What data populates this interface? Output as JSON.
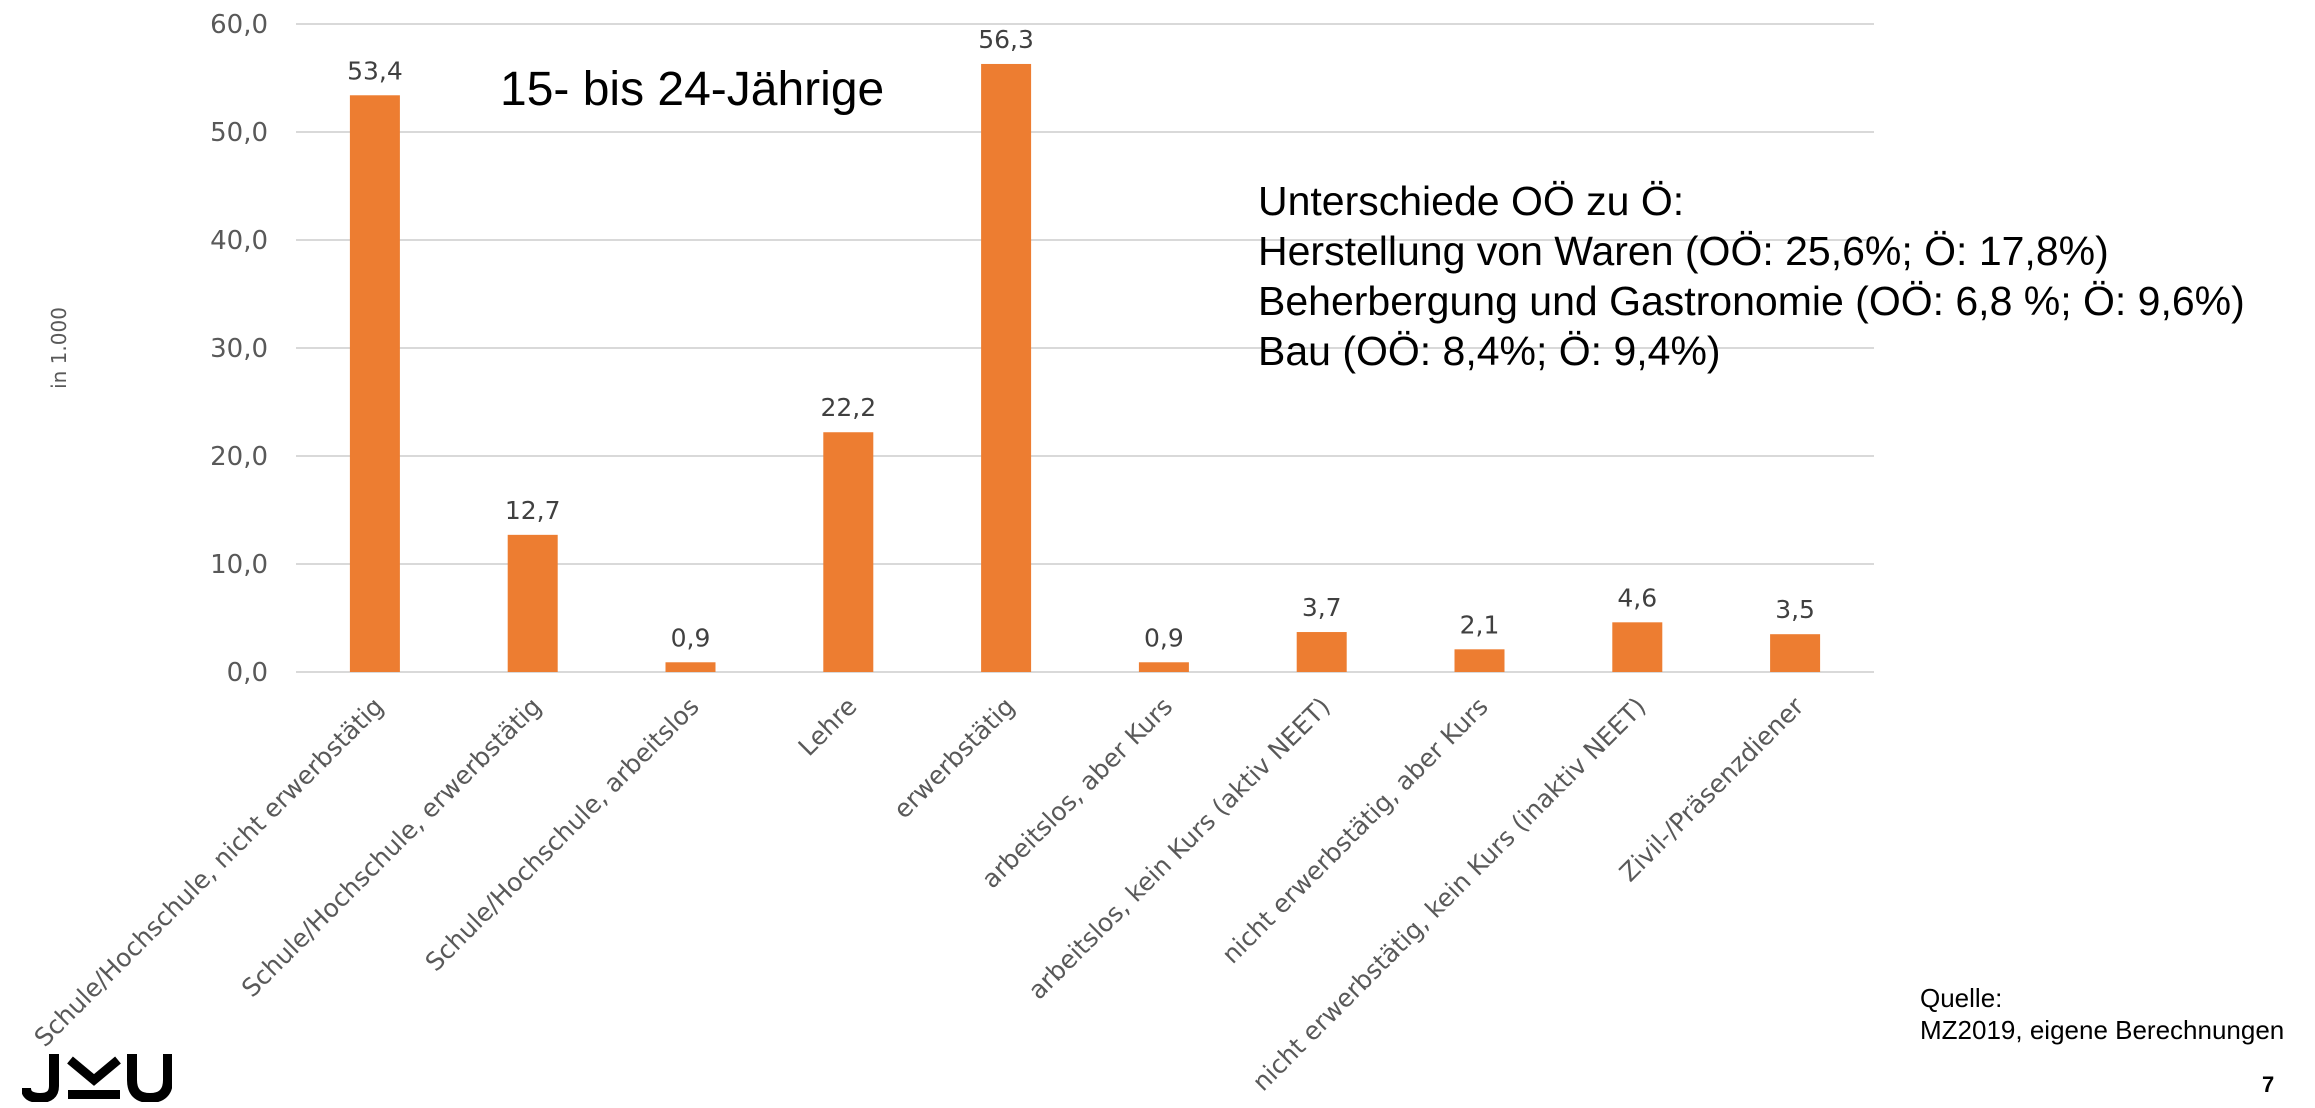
{
  "chart_data": {
    "type": "bar",
    "categories": [
      "Schule/Hochschule, nicht erwerbstätig",
      "Schule/Hochschule, erwerbstätig",
      "Schule/Hochschule, arbeitslos",
      "Lehre",
      "erwerbstätig",
      "arbeitslos, aber Kurs",
      "arbeitslos, kein Kurs (aktiv NEET)",
      "nicht erwerbstätig, aber Kurs",
      "nicht erwerbstätig, kein Kurs (inaktiv NEET)",
      "Zivil-/Präsenzdiener"
    ],
    "values": [
      53.4,
      12.7,
      0.9,
      22.2,
      56.3,
      0.9,
      3.7,
      2.1,
      4.6,
      3.5
    ],
    "value_labels": [
      "53,4",
      "12,7",
      "0,9",
      "22,2",
      "56,3",
      "0,9",
      "3,7",
      "2,1",
      "4,6",
      "3,5"
    ],
    "ylim": [
      0,
      60
    ],
    "yticks": [
      "0,0",
      "10,0",
      "20,0",
      "30,0",
      "40,0",
      "50,0",
      "60,0"
    ],
    "ylabel": "in 1.000",
    "xlabel": "",
    "grid": true,
    "bar_color": "#ED7D31",
    "grid_color": "#d9d9d9"
  },
  "subtitle": "15- bis 24-Jährige",
  "note_lines": [
    "Unterschiede OÖ zu Ö:",
    "Herstellung von Waren (OÖ: 25,6%; Ö: 17,8%)",
    "Beherbergung und Gastronomie (OÖ: 6,8 %; Ö: 9,6%)",
    "Bau (OÖ: 8,4%; Ö: 9,4%)"
  ],
  "source": {
    "label": "Quelle:",
    "text": "MZ2019, eigene Berechnungen"
  },
  "page_number": "7",
  "logo_text": "JKU"
}
